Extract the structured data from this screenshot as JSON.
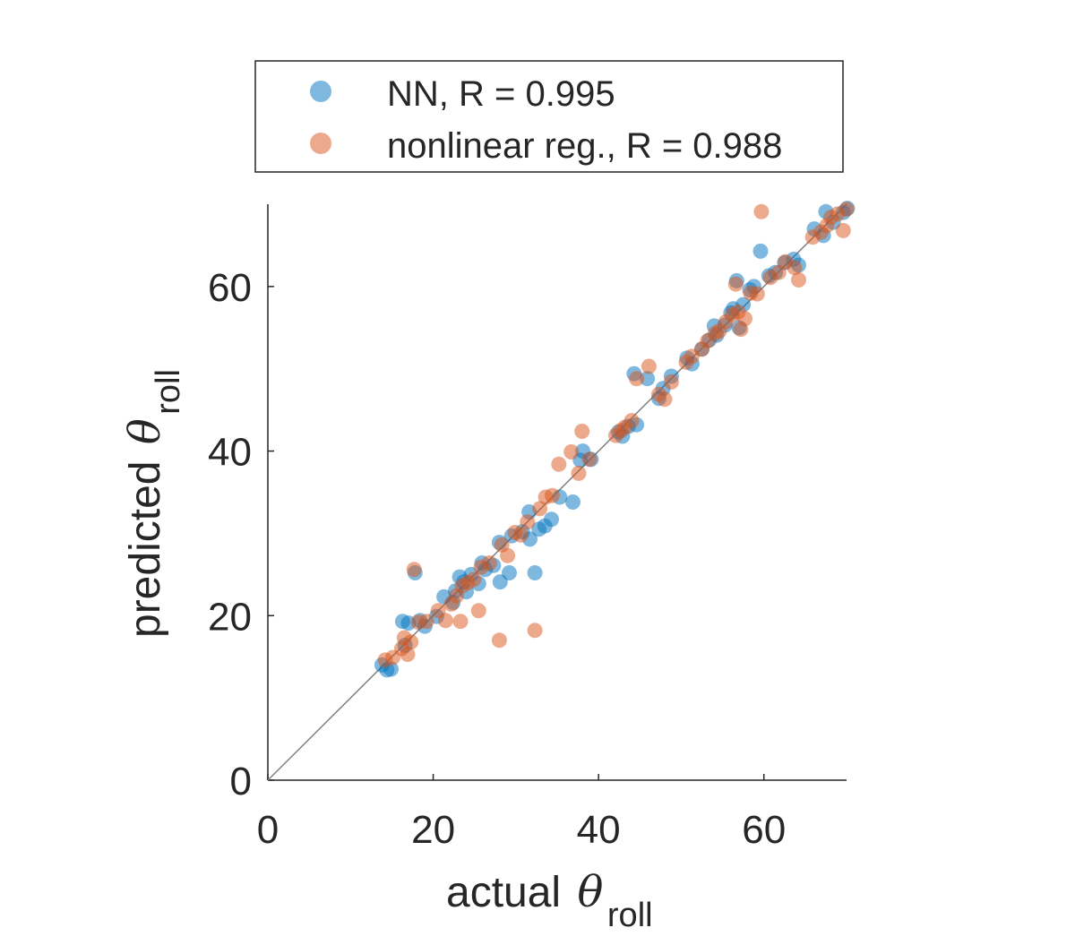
{
  "chart_data": {
    "type": "scatter",
    "title": "",
    "xlabel": {
      "prefix": "actual",
      "symbol": "θ",
      "subscript": "roll"
    },
    "ylabel": {
      "prefix": "predicted",
      "symbol": "θ",
      "subscript": "roll"
    },
    "xlim": [
      0,
      70
    ],
    "ylim": [
      0,
      70
    ],
    "xticks": [
      0,
      20,
      40,
      60
    ],
    "yticks": [
      0,
      20,
      40,
      60
    ],
    "grid": false,
    "legend_position": "top-outside",
    "reference_line": {
      "label": "identity",
      "from": [
        0,
        0
      ],
      "to": [
        70,
        70
      ],
      "color": "#808080"
    },
    "series": [
      {
        "name": "NN, R = 0.995",
        "color": "#0072BD",
        "points": [
          [
            13.8,
            14.0
          ],
          [
            14.4,
            13.4
          ],
          [
            14.9,
            13.5
          ],
          [
            16.3,
            19.3
          ],
          [
            16.6,
            16.4
          ],
          [
            17.0,
            19.1
          ],
          [
            17.8,
            25.2
          ],
          [
            18.4,
            19.4
          ],
          [
            19.0,
            18.7
          ],
          [
            20.4,
            19.9
          ],
          [
            21.3,
            22.3
          ],
          [
            22.4,
            21.6
          ],
          [
            22.7,
            23.0
          ],
          [
            23.2,
            24.7
          ],
          [
            23.7,
            24.1
          ],
          [
            24.0,
            22.9
          ],
          [
            24.6,
            25.0
          ],
          [
            25.5,
            23.9
          ],
          [
            25.9,
            26.4
          ],
          [
            26.3,
            25.6
          ],
          [
            27.3,
            26.1
          ],
          [
            28.0,
            28.9
          ],
          [
            28.1,
            24.1
          ],
          [
            29.2,
            25.2
          ],
          [
            29.5,
            29.7
          ],
          [
            30.8,
            30.2
          ],
          [
            31.6,
            32.6
          ],
          [
            31.7,
            29.3
          ],
          [
            32.3,
            25.2
          ],
          [
            32.8,
            30.5
          ],
          [
            33.5,
            30.9
          ],
          [
            34.3,
            31.7
          ],
          [
            35.3,
            34.4
          ],
          [
            36.9,
            33.8
          ],
          [
            37.8,
            38.9
          ],
          [
            38.1,
            40.0
          ],
          [
            39.1,
            39.0
          ],
          [
            42.4,
            42.3
          ],
          [
            42.9,
            41.8
          ],
          [
            43.6,
            43.0
          ],
          [
            44.3,
            49.4
          ],
          [
            44.6,
            43.2
          ],
          [
            45.9,
            48.8
          ],
          [
            47.3,
            46.4
          ],
          [
            47.8,
            47.6
          ],
          [
            48.8,
            49.1
          ],
          [
            50.7,
            51.3
          ],
          [
            51.3,
            50.6
          ],
          [
            52.5,
            52.4
          ],
          [
            53.4,
            53.5
          ],
          [
            54.0,
            55.2
          ],
          [
            54.3,
            54.1
          ],
          [
            55.3,
            55.3
          ],
          [
            56.0,
            56.8
          ],
          [
            56.3,
            57.3
          ],
          [
            56.7,
            60.7
          ],
          [
            57.0,
            55.0
          ],
          [
            57.5,
            57.8
          ],
          [
            58.3,
            59.6
          ],
          [
            58.8,
            60.0
          ],
          [
            59.6,
            64.3
          ],
          [
            60.6,
            61.3
          ],
          [
            61.4,
            61.7
          ],
          [
            62.5,
            62.9
          ],
          [
            63.6,
            63.3
          ],
          [
            64.2,
            62.6
          ],
          [
            66.1,
            67.0
          ],
          [
            67.2,
            66.2
          ],
          [
            67.5,
            69.1
          ],
          [
            68.4,
            67.8
          ],
          [
            69.6,
            69.0
          ],
          [
            70.1,
            69.5
          ]
        ]
      },
      {
        "name": "nonlinear reg., R = 0.988",
        "color": "#D95319",
        "points": [
          [
            14.2,
            14.6
          ],
          [
            15.1,
            14.9
          ],
          [
            16.2,
            16.0
          ],
          [
            16.5,
            17.3
          ],
          [
            16.9,
            15.3
          ],
          [
            17.3,
            16.8
          ],
          [
            17.7,
            25.6
          ],
          [
            18.2,
            19.2
          ],
          [
            19.2,
            19.3
          ],
          [
            20.6,
            20.6
          ],
          [
            21.5,
            19.4
          ],
          [
            22.2,
            21.4
          ],
          [
            22.8,
            22.4
          ],
          [
            23.3,
            19.3
          ],
          [
            23.5,
            23.6
          ],
          [
            24.2,
            24.0
          ],
          [
            24.9,
            24.4
          ],
          [
            25.5,
            20.6
          ],
          [
            25.8,
            25.9
          ],
          [
            26.8,
            26.4
          ],
          [
            28.0,
            17.0
          ],
          [
            28.3,
            28.6
          ],
          [
            29.0,
            27.3
          ],
          [
            29.9,
            30.1
          ],
          [
            30.6,
            29.8
          ],
          [
            31.4,
            31.4
          ],
          [
            32.3,
            18.2
          ],
          [
            32.9,
            33.0
          ],
          [
            33.6,
            34.4
          ],
          [
            34.4,
            34.6
          ],
          [
            35.2,
            38.4
          ],
          [
            36.7,
            39.9
          ],
          [
            37.6,
            37.3
          ],
          [
            38.0,
            42.4
          ],
          [
            38.9,
            39.0
          ],
          [
            42.1,
            41.9
          ],
          [
            42.7,
            42.5
          ],
          [
            43.2,
            42.9
          ],
          [
            44.0,
            43.7
          ],
          [
            44.6,
            48.8
          ],
          [
            46.1,
            50.3
          ],
          [
            47.3,
            46.9
          ],
          [
            48.0,
            46.3
          ],
          [
            48.8,
            48.4
          ],
          [
            50.6,
            50.8
          ],
          [
            51.3,
            51.5
          ],
          [
            52.5,
            52.4
          ],
          [
            53.2,
            53.4
          ],
          [
            54.1,
            54.3
          ],
          [
            54.6,
            54.6
          ],
          [
            55.4,
            55.7
          ],
          [
            56.2,
            56.6
          ],
          [
            56.6,
            60.3
          ],
          [
            56.9,
            56.9
          ],
          [
            57.2,
            54.8
          ],
          [
            57.7,
            56.1
          ],
          [
            58.4,
            59.2
          ],
          [
            59.2,
            59.1
          ],
          [
            59.7,
            69.1
          ],
          [
            60.8,
            61.1
          ],
          [
            61.8,
            61.7
          ],
          [
            62.6,
            63.0
          ],
          [
            63.7,
            62.3
          ],
          [
            64.2,
            60.8
          ],
          [
            65.9,
            66.0
          ],
          [
            66.9,
            66.6
          ],
          [
            67.6,
            67.4
          ],
          [
            68.1,
            68.4
          ],
          [
            68.9,
            68.8
          ],
          [
            69.6,
            66.8
          ],
          [
            70.0,
            69.4
          ]
        ]
      }
    ]
  }
}
